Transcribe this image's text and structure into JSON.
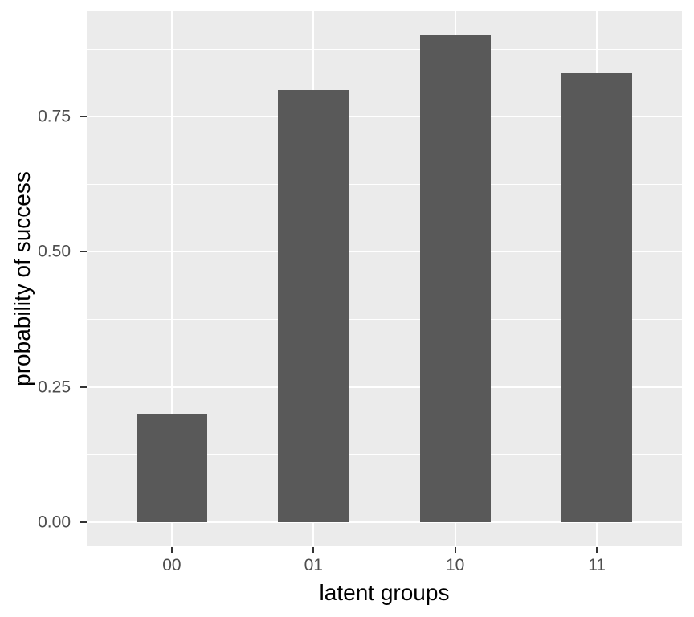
{
  "chart_data": {
    "type": "bar",
    "title": "",
    "xlabel": "latent groups",
    "ylabel": "probability of success",
    "categories": [
      "00",
      "01",
      "10",
      "11"
    ],
    "values": [
      0.2,
      0.8,
      0.9,
      0.83
    ],
    "ylim": [
      -0.045,
      0.945
    ],
    "yticks": [
      0,
      0.25,
      0.5,
      0.75
    ],
    "ytick_labels": [
      "0.00",
      "0.25",
      "0.50",
      "0.75"
    ],
    "y_minor_gridlines": [
      0.125,
      0.375,
      0.625,
      0.875
    ],
    "bar_width_fraction": 0.5,
    "grid": "major-and-minor-horizontal, major-vertical-at-categories",
    "legend_position": "none",
    "style": "ggplot2-theme-grey",
    "colors": {
      "bar_fill": "#595959",
      "panel_background": "#EBEBEB",
      "gridline": "#FFFFFF",
      "tick_label": "#4D4D4D",
      "axis_title": "#000000",
      "tick_mark": "#333333",
      "figure_background": "#FFFFFF"
    }
  }
}
